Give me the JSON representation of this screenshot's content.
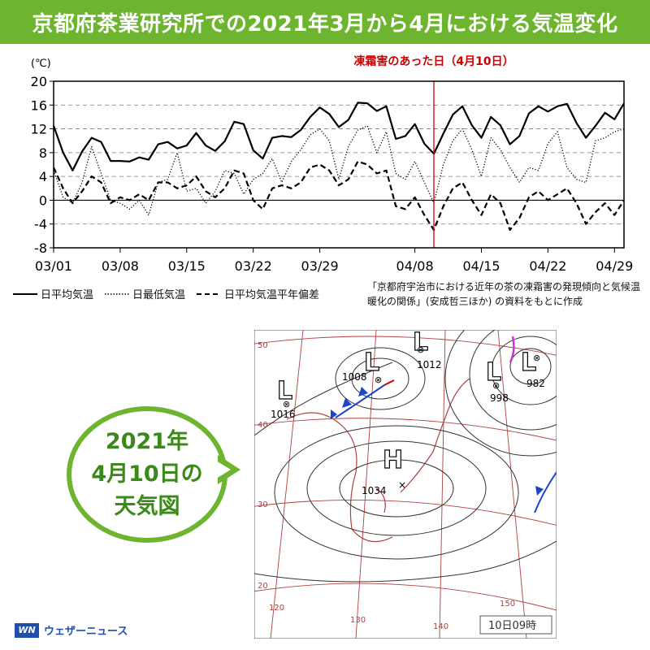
{
  "header": {
    "title": "京都府茶業研究所での2021年3月から4月における気温変化"
  },
  "chart_data": {
    "type": "line",
    "unit_label": "(℃)",
    "ylim": [
      -8,
      20
    ],
    "yticks": [
      "20",
      "16",
      "12",
      "8",
      "4",
      "0",
      "-4",
      "-8"
    ],
    "xticks": [
      "03/01",
      "03/08",
      "03/15",
      "03/22",
      "03/29",
      "04/08",
      "04/15",
      "04/22",
      "04/29"
    ],
    "xtick_days": [
      0,
      7,
      14,
      21,
      28,
      38,
      45,
      52,
      59
    ],
    "frost_day": 40,
    "frost_label": "凍霜害のあった日（4月10日）",
    "series": [
      {
        "name": "日平均気温",
        "style": "solid",
        "values": [
          12.5,
          8.0,
          5.0,
          8.2,
          10.5,
          9.8,
          6.6,
          6.6,
          6.5,
          7.2,
          6.8,
          9.4,
          9.8,
          8.7,
          9.2,
          11.3,
          9.2,
          8.3,
          9.9,
          13.2,
          12.8,
          8.4,
          7.0,
          10.5,
          10.8,
          10.6,
          11.8,
          14.0,
          15.6,
          14.5,
          12.3,
          13.5,
          16.4,
          16.3,
          15.0,
          15.8,
          10.3,
          10.8,
          12.8,
          9.5,
          7.8,
          11.2,
          14.4,
          15.8,
          12.6,
          10.5,
          14.0,
          12.6,
          9.4,
          10.8,
          14.6,
          15.8,
          14.9,
          15.8,
          16.2,
          13.0,
          10.5,
          12.5,
          14.7,
          13.6,
          16.3
        ]
      },
      {
        "name": "日最低気温",
        "style": "dotted",
        "values": [
          5.0,
          0.5,
          -0.5,
          3.0,
          9.0,
          4.5,
          0.0,
          -0.5,
          -1.5,
          0.0,
          -2.5,
          3.0,
          3.5,
          8.0,
          1.5,
          2.0,
          -0.5,
          1.5,
          5.0,
          4.5,
          1.0,
          3.5,
          4.5,
          7.0,
          3.0,
          6.5,
          8.5,
          11.0,
          12.0,
          10.0,
          3.5,
          9.0,
          11.8,
          12.5,
          8.0,
          11.5,
          4.5,
          3.5,
          6.5,
          3.0,
          -0.5,
          6.0,
          10.0,
          12.0,
          8.5,
          4.0,
          10.5,
          8.5,
          5.5,
          3.0,
          5.5,
          5.0,
          9.5,
          11.5,
          5.5,
          3.5,
          3.0,
          10.0,
          10.5,
          11.5,
          12.0
        ]
      },
      {
        "name": "日平均気温平年偏差",
        "style": "dashed",
        "values": [
          5.5,
          2.0,
          -0.5,
          1.5,
          4.0,
          3.0,
          -0.5,
          0.5,
          0.0,
          1.0,
          0.0,
          3.0,
          3.0,
          2.0,
          2.5,
          4.0,
          1.5,
          0.5,
          2.0,
          5.0,
          4.5,
          0.0,
          -1.5,
          2.0,
          2.5,
          2.0,
          3.0,
          5.5,
          6.0,
          5.0,
          2.5,
          3.5,
          6.5,
          6.0,
          4.5,
          5.0,
          -1.0,
          -1.5,
          0.5,
          -2.5,
          -5.0,
          -1.0,
          2.0,
          3.0,
          0.0,
          -2.5,
          1.0,
          -0.5,
          -5.0,
          -3.0,
          0.5,
          1.5,
          0.0,
          1.0,
          2.0,
          -0.5,
          -4.0,
          -2.0,
          -0.5,
          -2.5,
          0.0
        ]
      }
    ]
  },
  "legend": [
    {
      "label": "日平均気温",
      "style": "solid"
    },
    {
      "label": "日最低気温",
      "style": "dotted"
    },
    {
      "label": "日平均気温平年偏差",
      "style": "dashed"
    }
  ],
  "source": "「京都府宇治市における近年の茶の凍霜害の発現傾向と気候温暖化の関係」(安成哲三ほか) の資料をもとに作成",
  "bubble": {
    "text": "2021年\n4月10日の\n天気図"
  },
  "weather_map": {
    "pressure_systems": [
      {
        "type": "L",
        "value": "1016"
      },
      {
        "type": "L",
        "value": "1008"
      },
      {
        "type": "L",
        "value": "1012"
      },
      {
        "type": "L",
        "value": "998"
      },
      {
        "type": "L",
        "value": "982"
      },
      {
        "type": "H",
        "value": "1034"
      }
    ],
    "lat_labels": [
      "50",
      "40",
      "30",
      "20"
    ],
    "lon_labels": [
      "120",
      "130",
      "140",
      "150"
    ],
    "timestamp": "10日09時"
  },
  "brand": {
    "logo": "WN",
    "name": "ウェザーニュース"
  },
  "colors": {
    "header": "#6eb52f",
    "frost_line": "#cc0000",
    "bubble": "#3a8a17",
    "map_grid": "#b04040"
  }
}
